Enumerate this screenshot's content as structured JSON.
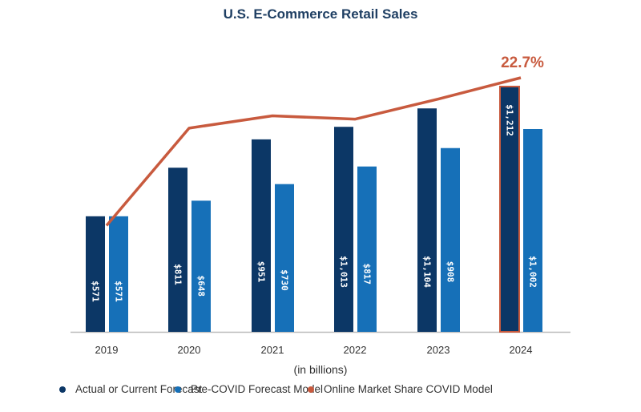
{
  "chart_data": {
    "type": "bar",
    "title": "U.S. E-Commerce Retail Sales",
    "xlabel": "(in billions)",
    "categories": [
      "2019",
      "2020",
      "2021",
      "2022",
      "2023",
      "2024"
    ],
    "series": [
      {
        "name": "Actual or Current Forecast",
        "kind": "bar",
        "color": "#0c3766",
        "values": [
          571,
          811,
          951,
          1013,
          1104,
          1212
        ],
        "labels": [
          "$571",
          "$811",
          "$951",
          "$1,013",
          "$1,104",
          "$1,212"
        ]
      },
      {
        "name": "Pre-COVID Forecast Model",
        "kind": "bar",
        "color": "#1670b8",
        "values": [
          571,
          648,
          730,
          817,
          908,
          1002
        ],
        "labels": [
          "$571",
          "$648",
          "$730",
          "$817",
          "$908",
          "$1,002"
        ]
      },
      {
        "name": "Online Market Share COVID Model",
        "kind": "line",
        "color": "#c85a3e",
        "values": [
          9.5,
          18.2,
          19.3,
          19.0,
          20.8,
          22.7
        ],
        "end_label": "22.7%"
      }
    ],
    "highlight": {
      "category": "2024",
      "series": "Actual or Current Forecast",
      "outline_color": "#c85a3e"
    },
    "grid": false,
    "legend": "bottom"
  }
}
